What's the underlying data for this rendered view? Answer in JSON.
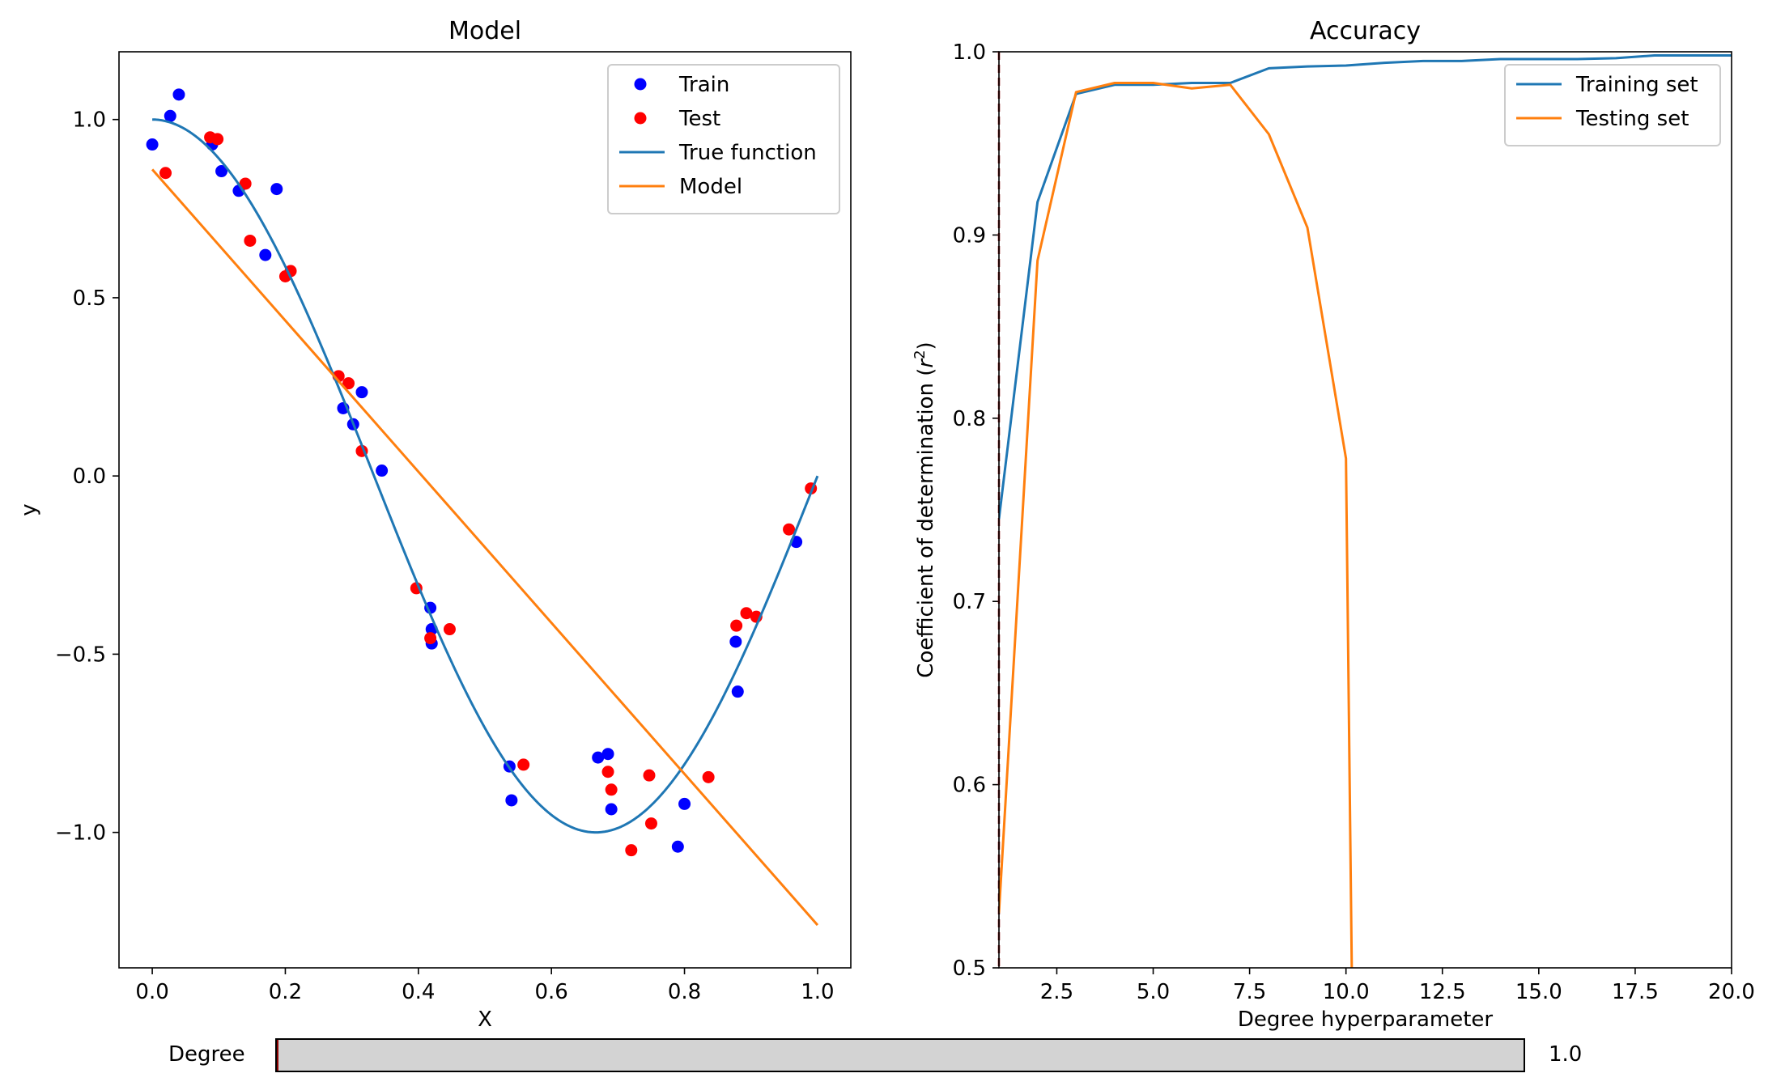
{
  "chart_data": [
    {
      "type": "scatter+line",
      "title": "Model",
      "xlabel": "X",
      "ylabel": "y",
      "xlim": [
        -0.05,
        1.05
      ],
      "ylim": [
        -1.38,
        1.19
      ],
      "xticks": [
        0.0,
        0.2,
        0.4,
        0.6,
        0.8,
        1.0
      ],
      "xtick_labels": [
        "0.0",
        "0.2",
        "0.4",
        "0.6",
        "0.8",
        "1.0"
      ],
      "yticks": [
        1.0,
        0.5,
        0.0,
        -0.5,
        -1.0
      ],
      "ytick_labels": [
        "1.0",
        "0.5",
        "0.0",
        "−0.5",
        "−1.0"
      ],
      "legend_position": "top-right",
      "grid": false,
      "series": [
        {
          "name": "Train",
          "kind": "scatter",
          "color": "#0000ff",
          "points": [
            [
              0.0,
              0.93
            ],
            [
              0.027,
              1.01
            ],
            [
              0.04,
              1.07
            ],
            [
              0.09,
              0.93
            ],
            [
              0.104,
              0.855
            ],
            [
              0.13,
              0.8
            ],
            [
              0.17,
              0.62
            ],
            [
              0.187,
              0.805
            ],
            [
              0.287,
              0.19
            ],
            [
              0.302,
              0.145
            ],
            [
              0.315,
              0.235
            ],
            [
              0.345,
              0.015
            ],
            [
              0.418,
              -0.37
            ],
            [
              0.42,
              -0.43
            ],
            [
              0.42,
              -0.47
            ],
            [
              0.537,
              -0.815
            ],
            [
              0.54,
              -0.91
            ],
            [
              0.67,
              -0.79
            ],
            [
              0.685,
              -0.78
            ],
            [
              0.69,
              -0.935
            ],
            [
              0.79,
              -1.04
            ],
            [
              0.8,
              -0.92
            ],
            [
              0.877,
              -0.465
            ],
            [
              0.88,
              -0.605
            ],
            [
              0.968,
              -0.185
            ]
          ]
        },
        {
          "name": "Test",
          "kind": "scatter",
          "color": "#ff0000",
          "points": [
            [
              0.02,
              0.85
            ],
            [
              0.087,
              0.95
            ],
            [
              0.098,
              0.945
            ],
            [
              0.14,
              0.82
            ],
            [
              0.147,
              0.66
            ],
            [
              0.2,
              0.56
            ],
            [
              0.208,
              0.575
            ],
            [
              0.28,
              0.28
            ],
            [
              0.295,
              0.26
            ],
            [
              0.315,
              0.07
            ],
            [
              0.397,
              -0.315
            ],
            [
              0.418,
              -0.455
            ],
            [
              0.447,
              -0.43
            ],
            [
              0.558,
              -0.81
            ],
            [
              0.685,
              -0.83
            ],
            [
              0.69,
              -0.88
            ],
            [
              0.72,
              -1.05
            ],
            [
              0.747,
              -0.84
            ],
            [
              0.75,
              -0.975
            ],
            [
              0.836,
              -0.845
            ],
            [
              0.878,
              -0.42
            ],
            [
              0.893,
              -0.385
            ],
            [
              0.908,
              -0.395
            ],
            [
              0.957,
              -0.15
            ],
            [
              0.99,
              -0.035
            ]
          ]
        },
        {
          "name": "True function",
          "kind": "line",
          "color": "#1f77b4",
          "function": "cos(1.5*pi*x)",
          "domain": [
            0,
            1
          ]
        },
        {
          "name": "Model",
          "kind": "line",
          "color": "#ff7f0e",
          "points": [
            [
              0.0,
              0.86
            ],
            [
              1.0,
              -1.26
            ]
          ]
        }
      ]
    },
    {
      "type": "line",
      "title": "Accuracy",
      "xlabel": "Degree hyperparameter",
      "ylabel_prefix": "Coefficient of determination (",
      "ylabel_var": "r",
      "ylabel_sup": "2",
      "ylabel_suffix": ")",
      "xlim": [
        1.0,
        20.0
      ],
      "ylim": [
        0.5,
        1.0
      ],
      "xticks": [
        2.5,
        5.0,
        7.5,
        10.0,
        12.5,
        15.0,
        17.5,
        20.0
      ],
      "xtick_labels": [
        "2.5",
        "5.0",
        "7.5",
        "10.0",
        "12.5",
        "15.0",
        "17.5",
        "20.0"
      ],
      "yticks": [
        0.5,
        0.6,
        0.7,
        0.8,
        0.9,
        1.0
      ],
      "ytick_labels": [
        "0.5",
        "0.6",
        "0.7",
        "0.8",
        "0.9",
        "1.0"
      ],
      "legend_position": "top-right",
      "grid": false,
      "vline": {
        "x": 1.0,
        "color": "#8b0000",
        "style": "dashed"
      },
      "series": [
        {
          "name": "Training set",
          "color": "#1f77b4",
          "x": [
            1,
            2,
            3,
            4,
            5,
            6,
            7,
            8,
            9,
            10,
            11,
            12,
            13,
            14,
            15,
            16,
            17,
            18,
            19,
            20
          ],
          "y": [
            0.745,
            0.918,
            0.977,
            0.982,
            0.982,
            0.983,
            0.983,
            0.991,
            0.992,
            0.9925,
            0.994,
            0.995,
            0.995,
            0.996,
            0.996,
            0.996,
            0.9965,
            0.998,
            0.998,
            0.998
          ]
        },
        {
          "name": "Testing set",
          "color": "#ff7f0e",
          "x": [
            1,
            2,
            3,
            4,
            5,
            6,
            7,
            8,
            9,
            10,
            10.15
          ],
          "y": [
            0.53,
            0.886,
            0.978,
            0.983,
            0.983,
            0.98,
            0.982,
            0.955,
            0.904,
            0.778,
            0.5
          ]
        }
      ]
    }
  ],
  "slider": {
    "label": "Degree",
    "value": "1.0",
    "position_fraction": 0.0,
    "track_color": "#d3d3d3",
    "marker_color": "#8b0000"
  }
}
